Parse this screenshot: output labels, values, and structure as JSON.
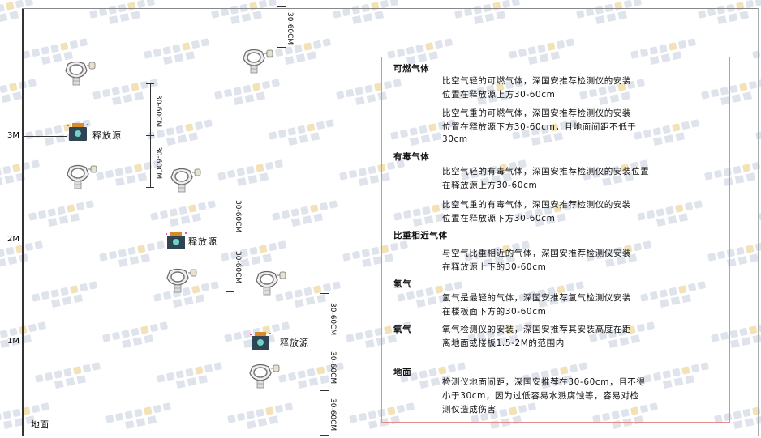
{
  "levels": [
    "3M",
    "2M",
    "1M"
  ],
  "ground_label": "地面",
  "source_label": "释放源",
  "dimension_label": "30-60CM",
  "watermark": "SINGOAN 深国安",
  "colors": {
    "border": "#e88a8a",
    "source_body": "#2f4554",
    "source_cap": "#d98a2b",
    "watermark": "#dfe3ec"
  },
  "legend": [
    {
      "heading": "可燃气体",
      "paragraphs": [
        [
          "比空气轻的可燃气体，深国安推荐检测仪的安装",
          "位置在释放源上方30-60cm"
        ],
        [
          "比空气重的可燃气体，深国安推荐检测仪的安装",
          "位置在释放源下方30-60cm，且地面间距不低于",
          "30cm"
        ]
      ]
    },
    {
      "heading": "有毒气体",
      "paragraphs": [
        [
          "比空气轻的有毒气体，深国安推荐检测仪的安装位置",
          "在释放源上方30-60cm"
        ],
        [
          "比空气重的有毒气体，深国安推荐检测仪的安装",
          "位置在释放源下方30-60cm"
        ]
      ]
    },
    {
      "heading": "比重相近气体",
      "paragraphs": [
        [
          "与空气比重相近的气体，深国安推荐检测仪安装",
          "在释放源上下的30-60cm"
        ]
      ]
    },
    {
      "heading": "氢气",
      "paragraphs": [
        [
          "氢气是最轻的气体，深国安推荐氢气检测仪安装",
          "在楼板面下方的30-60cm"
        ]
      ]
    },
    {
      "heading": "氧气",
      "paragraphs": [
        [
          "氧气检测仪的安装，深国安推荐其安装高度在距",
          "离地面或楼板1.5-2M的范围内"
        ]
      ]
    },
    {
      "heading": "地面",
      "paragraphs": [
        [
          "检测仪地面间距，深国安推荐在30-60cm，且不得",
          "小于30cm，因为过低容易水溅腐蚀等，容易对检",
          "测仪造成伤害"
        ]
      ]
    }
  ]
}
